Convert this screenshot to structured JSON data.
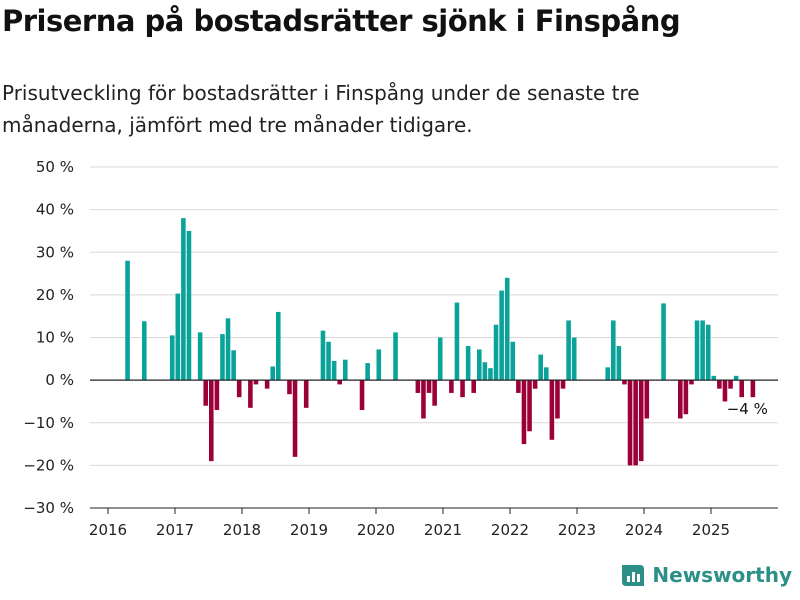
{
  "header": {
    "title": "Priserna på bostadsrätter sjönk i Finspång",
    "subtitle": "Prisutveckling för bostadsrätter i Finspång under de senaste tre månaderna, jämfört med tre månader tidigare."
  },
  "brand": {
    "name": "Newsworthy",
    "color": "#2c8f88"
  },
  "chart_data": {
    "type": "bar",
    "title": "Priserna på bostadsrätter sjönk i Finspång",
    "xlabel": "",
    "ylabel": "",
    "unit": "%",
    "ylim": [
      -30,
      50
    ],
    "y_ticks": [
      {
        "value": 50,
        "label": "50 %"
      },
      {
        "value": 40,
        "label": "40 %"
      },
      {
        "value": 30,
        "label": "30 %"
      },
      {
        "value": 20,
        "label": "20 %"
      },
      {
        "value": 10,
        "label": "10 %"
      },
      {
        "value": 0,
        "label": "0 %"
      },
      {
        "value": -10,
        "label": "−10 %"
      },
      {
        "value": -20,
        "label": "−20 %"
      },
      {
        "value": -30,
        "label": "−30 %"
      }
    ],
    "xlim": [
      "2016-01",
      "2026-01"
    ],
    "x_ticks": [
      "2016",
      "2017",
      "2018",
      "2019",
      "2020",
      "2021",
      "2022",
      "2023",
      "2024",
      "2025"
    ],
    "colors": {
      "positive": "#0aa39a",
      "negative": "#9b0038"
    },
    "grid": true,
    "annotation": {
      "text": "−4 %",
      "month": "2025-07"
    },
    "series": [
      {
        "values": [
          {
            "month": "2016-04",
            "value": 28
          },
          {
            "month": "2016-07",
            "value": 13.8
          },
          {
            "month": "2016-12",
            "value": 10.5
          },
          {
            "month": "2017-01",
            "value": 20.3
          },
          {
            "month": "2017-02",
            "value": 38
          },
          {
            "month": "2017-03",
            "value": 35
          },
          {
            "month": "2017-05",
            "value": 11.2
          },
          {
            "month": "2017-06",
            "value": -6
          },
          {
            "month": "2017-07",
            "value": -19
          },
          {
            "month": "2017-08",
            "value": -7
          },
          {
            "month": "2017-09",
            "value": 10.8
          },
          {
            "month": "2017-10",
            "value": 14.5
          },
          {
            "month": "2017-11",
            "value": 7
          },
          {
            "month": "2017-12",
            "value": -4
          },
          {
            "month": "2018-02",
            "value": -6.5
          },
          {
            "month": "2018-03",
            "value": -1
          },
          {
            "month": "2018-05",
            "value": -2
          },
          {
            "month": "2018-06",
            "value": 3.2
          },
          {
            "month": "2018-07",
            "value": 16
          },
          {
            "month": "2018-09",
            "value": -3.3
          },
          {
            "month": "2018-10",
            "value": -18
          },
          {
            "month": "2018-12",
            "value": -6.5
          },
          {
            "month": "2019-03",
            "value": 11.6
          },
          {
            "month": "2019-04",
            "value": 9
          },
          {
            "month": "2019-05",
            "value": 4.5
          },
          {
            "month": "2019-06",
            "value": -1
          },
          {
            "month": "2019-07",
            "value": 4.8
          },
          {
            "month": "2019-10",
            "value": -7
          },
          {
            "month": "2019-11",
            "value": 4
          },
          {
            "month": "2020-01",
            "value": 7.2
          },
          {
            "month": "2020-04",
            "value": 11.2
          },
          {
            "month": "2020-08",
            "value": -3
          },
          {
            "month": "2020-09",
            "value": -9
          },
          {
            "month": "2020-10",
            "value": -3
          },
          {
            "month": "2020-11",
            "value": -6
          },
          {
            "month": "2020-12",
            "value": 10
          },
          {
            "month": "2021-02",
            "value": -3
          },
          {
            "month": "2021-03",
            "value": 18.2
          },
          {
            "month": "2021-04",
            "value": -4
          },
          {
            "month": "2021-05",
            "value": 8
          },
          {
            "month": "2021-06",
            "value": -3
          },
          {
            "month": "2021-07",
            "value": 7.2
          },
          {
            "month": "2021-08",
            "value": 4.2
          },
          {
            "month": "2021-09",
            "value": 2.8
          },
          {
            "month": "2021-10",
            "value": 13
          },
          {
            "month": "2021-11",
            "value": 21
          },
          {
            "month": "2021-12",
            "value": 24
          },
          {
            "month": "2022-01",
            "value": 9
          },
          {
            "month": "2022-02",
            "value": -3
          },
          {
            "month": "2022-03",
            "value": -15
          },
          {
            "month": "2022-04",
            "value": -12
          },
          {
            "month": "2022-05",
            "value": -2
          },
          {
            "month": "2022-06",
            "value": 6
          },
          {
            "month": "2022-07",
            "value": 3
          },
          {
            "month": "2022-08",
            "value": -14
          },
          {
            "month": "2022-09",
            "value": -9
          },
          {
            "month": "2022-10",
            "value": -2
          },
          {
            "month": "2022-11",
            "value": 14
          },
          {
            "month": "2022-12",
            "value": 10
          },
          {
            "month": "2023-06",
            "value": 3
          },
          {
            "month": "2023-07",
            "value": 14
          },
          {
            "month": "2023-08",
            "value": 8
          },
          {
            "month": "2023-09",
            "value": -1
          },
          {
            "month": "2023-10",
            "value": -20
          },
          {
            "month": "2023-11",
            "value": -20
          },
          {
            "month": "2023-12",
            "value": -19
          },
          {
            "month": "2024-01",
            "value": -9
          },
          {
            "month": "2024-04",
            "value": 18
          },
          {
            "month": "2024-07",
            "value": -9
          },
          {
            "month": "2024-08",
            "value": -8
          },
          {
            "month": "2024-09",
            "value": -1
          },
          {
            "month": "2024-10",
            "value": 14
          },
          {
            "month": "2024-11",
            "value": 14
          },
          {
            "month": "2024-12",
            "value": 13
          },
          {
            "month": "2025-01",
            "value": 1
          },
          {
            "month": "2025-02",
            "value": -2
          },
          {
            "month": "2025-03",
            "value": -5
          },
          {
            "month": "2025-04",
            "value": -2
          },
          {
            "month": "2025-05",
            "value": 1
          },
          {
            "month": "2025-06",
            "value": -4
          },
          {
            "month": "2025-08",
            "value": -4
          }
        ]
      }
    ]
  }
}
